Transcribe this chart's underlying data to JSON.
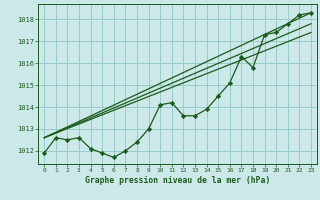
{
  "bg_color": "#cce8e8",
  "grid_color": "#99cccc",
  "line_color": "#1a5c1a",
  "title": "Graphe pression niveau de la mer (hPa)",
  "xlim": [
    -0.5,
    23.5
  ],
  "ylim": [
    1011.4,
    1018.7
  ],
  "yticks": [
    1012,
    1013,
    1014,
    1015,
    1016,
    1017,
    1018
  ],
  "xticks": [
    0,
    1,
    2,
    3,
    4,
    5,
    6,
    7,
    8,
    9,
    10,
    11,
    12,
    13,
    14,
    15,
    16,
    17,
    18,
    19,
    20,
    21,
    22,
    23
  ],
  "x": [
    0,
    1,
    2,
    3,
    4,
    5,
    6,
    7,
    8,
    9,
    10,
    11,
    12,
    13,
    14,
    15,
    16,
    17,
    18,
    19,
    20,
    21,
    22,
    23
  ],
  "line1": [
    1011.9,
    1012.6,
    1012.5,
    1012.6,
    1012.1,
    1011.9,
    1011.7,
    1012.0,
    1012.4,
    1013.0,
    1014.1,
    1014.2,
    1013.6,
    1013.6,
    1013.9,
    1014.5,
    1015.1,
    1016.3,
    1015.8,
    1017.3,
    1017.4,
    1017.8,
    1018.2,
    1018.3
  ],
  "line2_x": [
    0,
    23
  ],
  "line2_y": [
    1012.6,
    1017.4
  ],
  "line3_x": [
    0,
    23
  ],
  "line3_y": [
    1012.6,
    1018.3
  ],
  "line4_x": [
    0,
    23
  ],
  "line4_y": [
    1012.6,
    1017.8
  ]
}
